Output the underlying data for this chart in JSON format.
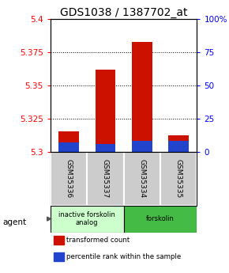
{
  "title": "GDS1038 / 1387702_at",
  "samples": [
    "GSM35336",
    "GSM35337",
    "GSM35334",
    "GSM35335"
  ],
  "red_values": [
    5.315,
    5.362,
    5.383,
    5.312
  ],
  "blue_values": [
    5.307,
    5.306,
    5.308,
    5.308
  ],
  "ymin": 5.3,
  "ymax": 5.4,
  "yticks_left": [
    5.3,
    5.325,
    5.35,
    5.375,
    5.4
  ],
  "yticks_right": [
    0,
    25,
    50,
    75,
    100
  ],
  "bar_width": 0.55,
  "red_color": "#cc1100",
  "blue_color": "#2244cc",
  "agent_groups": [
    {
      "label": "inactive forskolin\nanalog",
      "samples": [
        0,
        1
      ],
      "color": "#ccffcc",
      "border": "#99cc99"
    },
    {
      "label": "forskolin",
      "samples": [
        2,
        3
      ],
      "color": "#44bb44",
      "border": "#228822"
    }
  ],
  "legend_items": [
    {
      "color": "#cc1100",
      "label": "transformed count"
    },
    {
      "color": "#2244cc",
      "label": "percentile rank within the sample"
    }
  ],
  "title_fontsize": 10,
  "tick_fontsize": 7.5,
  "background_color": "#ffffff",
  "sample_bg": "#cccccc",
  "sample_edge": "#888888"
}
